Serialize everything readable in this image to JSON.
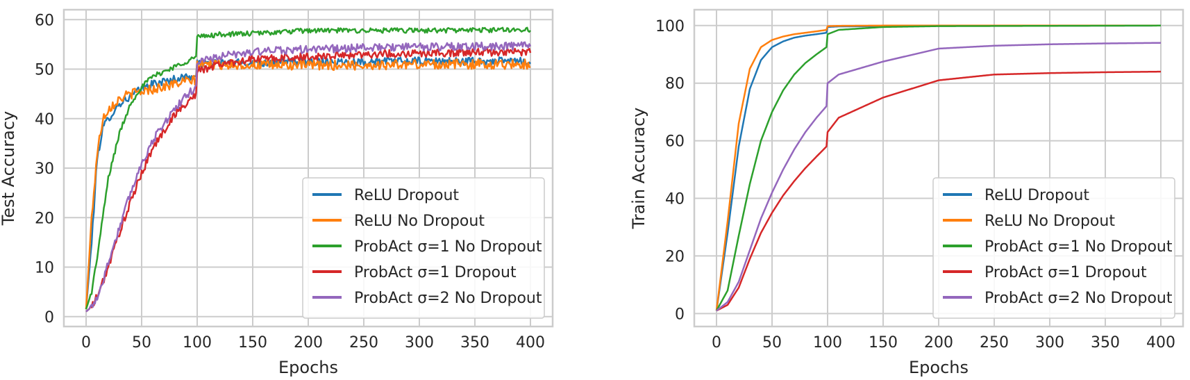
{
  "chart_data": [
    {
      "type": "line",
      "title": "",
      "xlabel": "Epochs",
      "ylabel": "Test Accuracy",
      "xlim": [
        -20,
        420
      ],
      "ylim": [
        -2,
        62
      ],
      "xticks": [
        0,
        50,
        100,
        150,
        200,
        250,
        300,
        350,
        400
      ],
      "yticks": [
        0,
        10,
        20,
        30,
        40,
        50,
        60
      ],
      "grid": true,
      "legend_position": "lower-right",
      "series": [
        {
          "name": "ReLU Dropout",
          "color": "#1f77b4",
          "noise": 0.8,
          "x": [
            0,
            5,
            10,
            15,
            20,
            30,
            40,
            50,
            60,
            70,
            80,
            90,
            99,
            100,
            120,
            150,
            200,
            250,
            300,
            350,
            400
          ],
          "y": [
            1.5,
            15,
            32,
            38,
            40,
            43,
            44.5,
            46,
            47,
            47.5,
            48,
            48.5,
            48.5,
            51,
            51.2,
            51.3,
            51.5,
            51.5,
            51.6,
            51.6,
            51.6
          ]
        },
        {
          "name": "ReLU No Dropout",
          "color": "#ff7f0e",
          "noise": 1.0,
          "x": [
            0,
            5,
            10,
            15,
            20,
            30,
            40,
            50,
            60,
            70,
            80,
            90,
            99,
            100,
            120,
            150,
            200,
            250,
            300,
            350,
            400
          ],
          "y": [
            1.5,
            20,
            33,
            40,
            42,
            44,
            45,
            45.5,
            46,
            46.5,
            47,
            47.5,
            47.8,
            51,
            51,
            50.8,
            50.8,
            50.8,
            51,
            51,
            51
          ]
        },
        {
          "name": "ProbAct σ=1 No Dropout",
          "color": "#2ca02c",
          "noise": 0.5,
          "x": [
            0,
            5,
            10,
            15,
            20,
            30,
            40,
            50,
            60,
            70,
            80,
            90,
            99,
            100,
            120,
            150,
            200,
            250,
            300,
            350,
            400
          ],
          "y": [
            1.5,
            5,
            12,
            20,
            28,
            37,
            43,
            46.5,
            48.5,
            49.5,
            50.5,
            51.5,
            52.5,
            56.5,
            57,
            57.2,
            57.8,
            57.8,
            57.8,
            57.9,
            58
          ]
        },
        {
          "name": "ProbAct σ=1 Dropout",
          "color": "#d62728",
          "noise": 0.8,
          "x": [
            0,
            5,
            10,
            15,
            20,
            30,
            40,
            50,
            60,
            70,
            80,
            90,
            99,
            100,
            120,
            150,
            200,
            250,
            300,
            350,
            400
          ],
          "y": [
            1,
            2,
            4,
            7,
            10,
            17,
            23,
            29,
            34,
            37.5,
            41,
            43,
            45,
            49.5,
            51,
            52,
            52.5,
            53,
            53.2,
            53.4,
            53.5
          ]
        },
        {
          "name": "ProbAct σ=2 No Dropout",
          "color": "#9467bd",
          "noise": 0.8,
          "x": [
            0,
            5,
            10,
            15,
            20,
            30,
            40,
            50,
            60,
            70,
            80,
            90,
            99,
            100,
            120,
            150,
            200,
            250,
            300,
            350,
            400
          ],
          "y": [
            1,
            2,
            4,
            7,
            11,
            18,
            25,
            31,
            35.5,
            39,
            42,
            44.5,
            46.5,
            51.5,
            52.5,
            53.5,
            54,
            54.3,
            54.5,
            54.6,
            54.7
          ]
        }
      ]
    },
    {
      "type": "line",
      "title": "",
      "xlabel": "Epochs",
      "ylabel": "Train Accuracy",
      "xlim": [
        -20,
        420
      ],
      "ylim": [
        -4.5,
        105.5
      ],
      "xticks": [
        0,
        50,
        100,
        150,
        200,
        250,
        300,
        350,
        400
      ],
      "yticks": [
        0,
        20,
        40,
        60,
        80,
        100
      ],
      "grid": true,
      "legend_position": "lower-right",
      "series": [
        {
          "name": "ReLU Dropout",
          "color": "#1f77b4",
          "noise": 0,
          "x": [
            0,
            10,
            20,
            30,
            40,
            50,
            60,
            70,
            80,
            90,
            99,
            100,
            110,
            150,
            200,
            400
          ],
          "y": [
            1,
            28,
            58,
            78,
            88,
            92.5,
            94.5,
            95.8,
            96.5,
            97,
            97.5,
            99.5,
            99.7,
            99.8,
            99.9,
            100
          ]
        },
        {
          "name": "ReLU No Dropout",
          "color": "#ff7f0e",
          "noise": 0,
          "x": [
            0,
            10,
            20,
            30,
            40,
            50,
            60,
            70,
            80,
            90,
            99,
            100,
            110,
            150,
            200,
            400
          ],
          "y": [
            1,
            32,
            66,
            85,
            92.5,
            95,
            96.2,
            97,
            97.5,
            98,
            98.5,
            99.8,
            99.9,
            100,
            100,
            100
          ]
        },
        {
          "name": "ProbAct σ=1 No Dropout",
          "color": "#2ca02c",
          "noise": 0,
          "x": [
            0,
            10,
            20,
            30,
            40,
            50,
            60,
            70,
            80,
            90,
            99,
            100,
            110,
            150,
            200,
            400
          ],
          "y": [
            1,
            8,
            27,
            45,
            60,
            70,
            77.5,
            83,
            87,
            90,
            92.5,
            97,
            98.5,
            99.5,
            99.8,
            100
          ]
        },
        {
          "name": "ProbAct σ=1 Dropout",
          "color": "#d62728",
          "noise": 0,
          "x": [
            0,
            10,
            20,
            30,
            40,
            50,
            60,
            70,
            80,
            90,
            99,
            100,
            110,
            150,
            200,
            250,
            300,
            350,
            400
          ],
          "y": [
            1,
            3,
            9,
            19,
            28,
            35,
            41,
            46,
            50.5,
            54.5,
            58,
            63,
            68,
            75,
            81,
            83,
            83.5,
            83.8,
            84
          ]
        },
        {
          "name": "ProbAct σ=2 No Dropout",
          "color": "#9467bd",
          "noise": 0,
          "x": [
            0,
            10,
            20,
            30,
            40,
            50,
            60,
            70,
            80,
            90,
            99,
            100,
            110,
            150,
            200,
            250,
            300,
            350,
            400
          ],
          "y": [
            1,
            4,
            11,
            22,
            33,
            42,
            50,
            57,
            63,
            68,
            72,
            80,
            83,
            87.5,
            92,
            93,
            93.5,
            93.8,
            94
          ]
        }
      ]
    }
  ]
}
